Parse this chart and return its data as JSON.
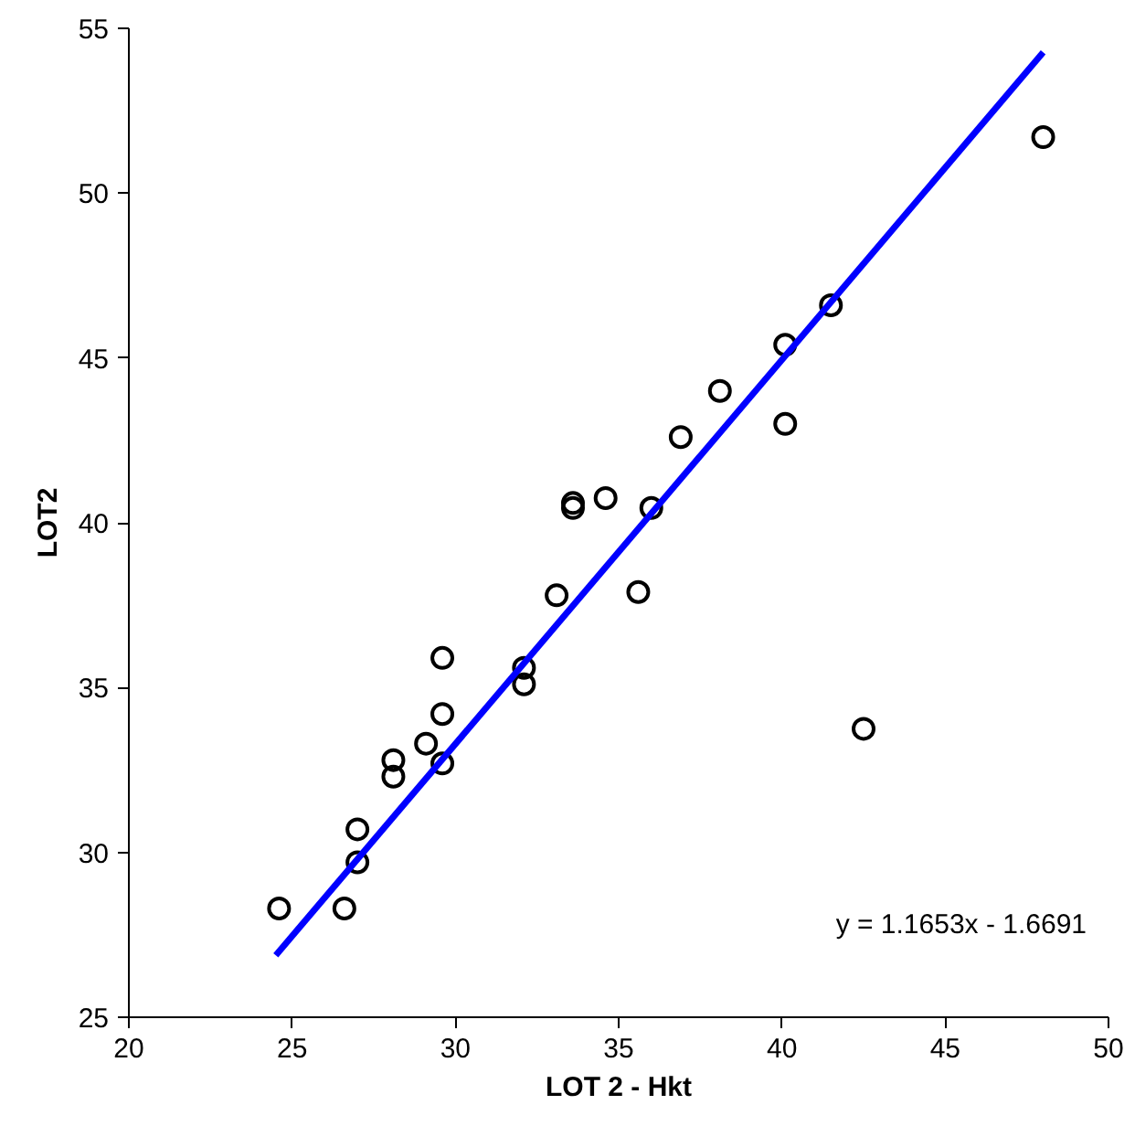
{
  "chart_data": {
    "type": "scatter",
    "xlabel": "LOT 2 - Hkt",
    "ylabel": "LOT2",
    "xlim": [
      20,
      50
    ],
    "xticks": [
      20,
      25,
      30,
      35,
      40,
      45,
      50
    ],
    "ylim": [
      25,
      55
    ],
    "yticks": [
      25,
      30,
      35,
      40,
      45,
      50,
      55
    ],
    "grid": false,
    "series": [
      {
        "marker": "circle",
        "color": "#000000",
        "x": [
          24.6,
          26.6,
          27.0,
          27.0,
          28.1,
          28.1,
          29.1,
          29.6,
          29.6,
          29.6,
          32.1,
          32.1,
          33.1,
          33.6,
          33.6,
          34.6,
          35.6,
          36.0,
          36.9,
          38.1,
          40.1,
          40.1,
          41.5,
          42.5,
          48.0
        ],
        "values": [
          28.3,
          28.3,
          29.7,
          30.7,
          32.8,
          32.3,
          33.3,
          34.2,
          35.9,
          32.7,
          35.6,
          35.1,
          37.8,
          40.6,
          40.45,
          40.75,
          37.9,
          40.45,
          42.6,
          44.0,
          45.4,
          43.0,
          46.6,
          33.75,
          51.7
        ]
      },
      {
        "type": "line",
        "color": "#0000ff",
        "x": [
          24.5,
          48.0
        ],
        "values": [
          26.88,
          54.27
        ]
      }
    ],
    "annotations": [
      "y = 1.1653x - 1.6691"
    ]
  }
}
